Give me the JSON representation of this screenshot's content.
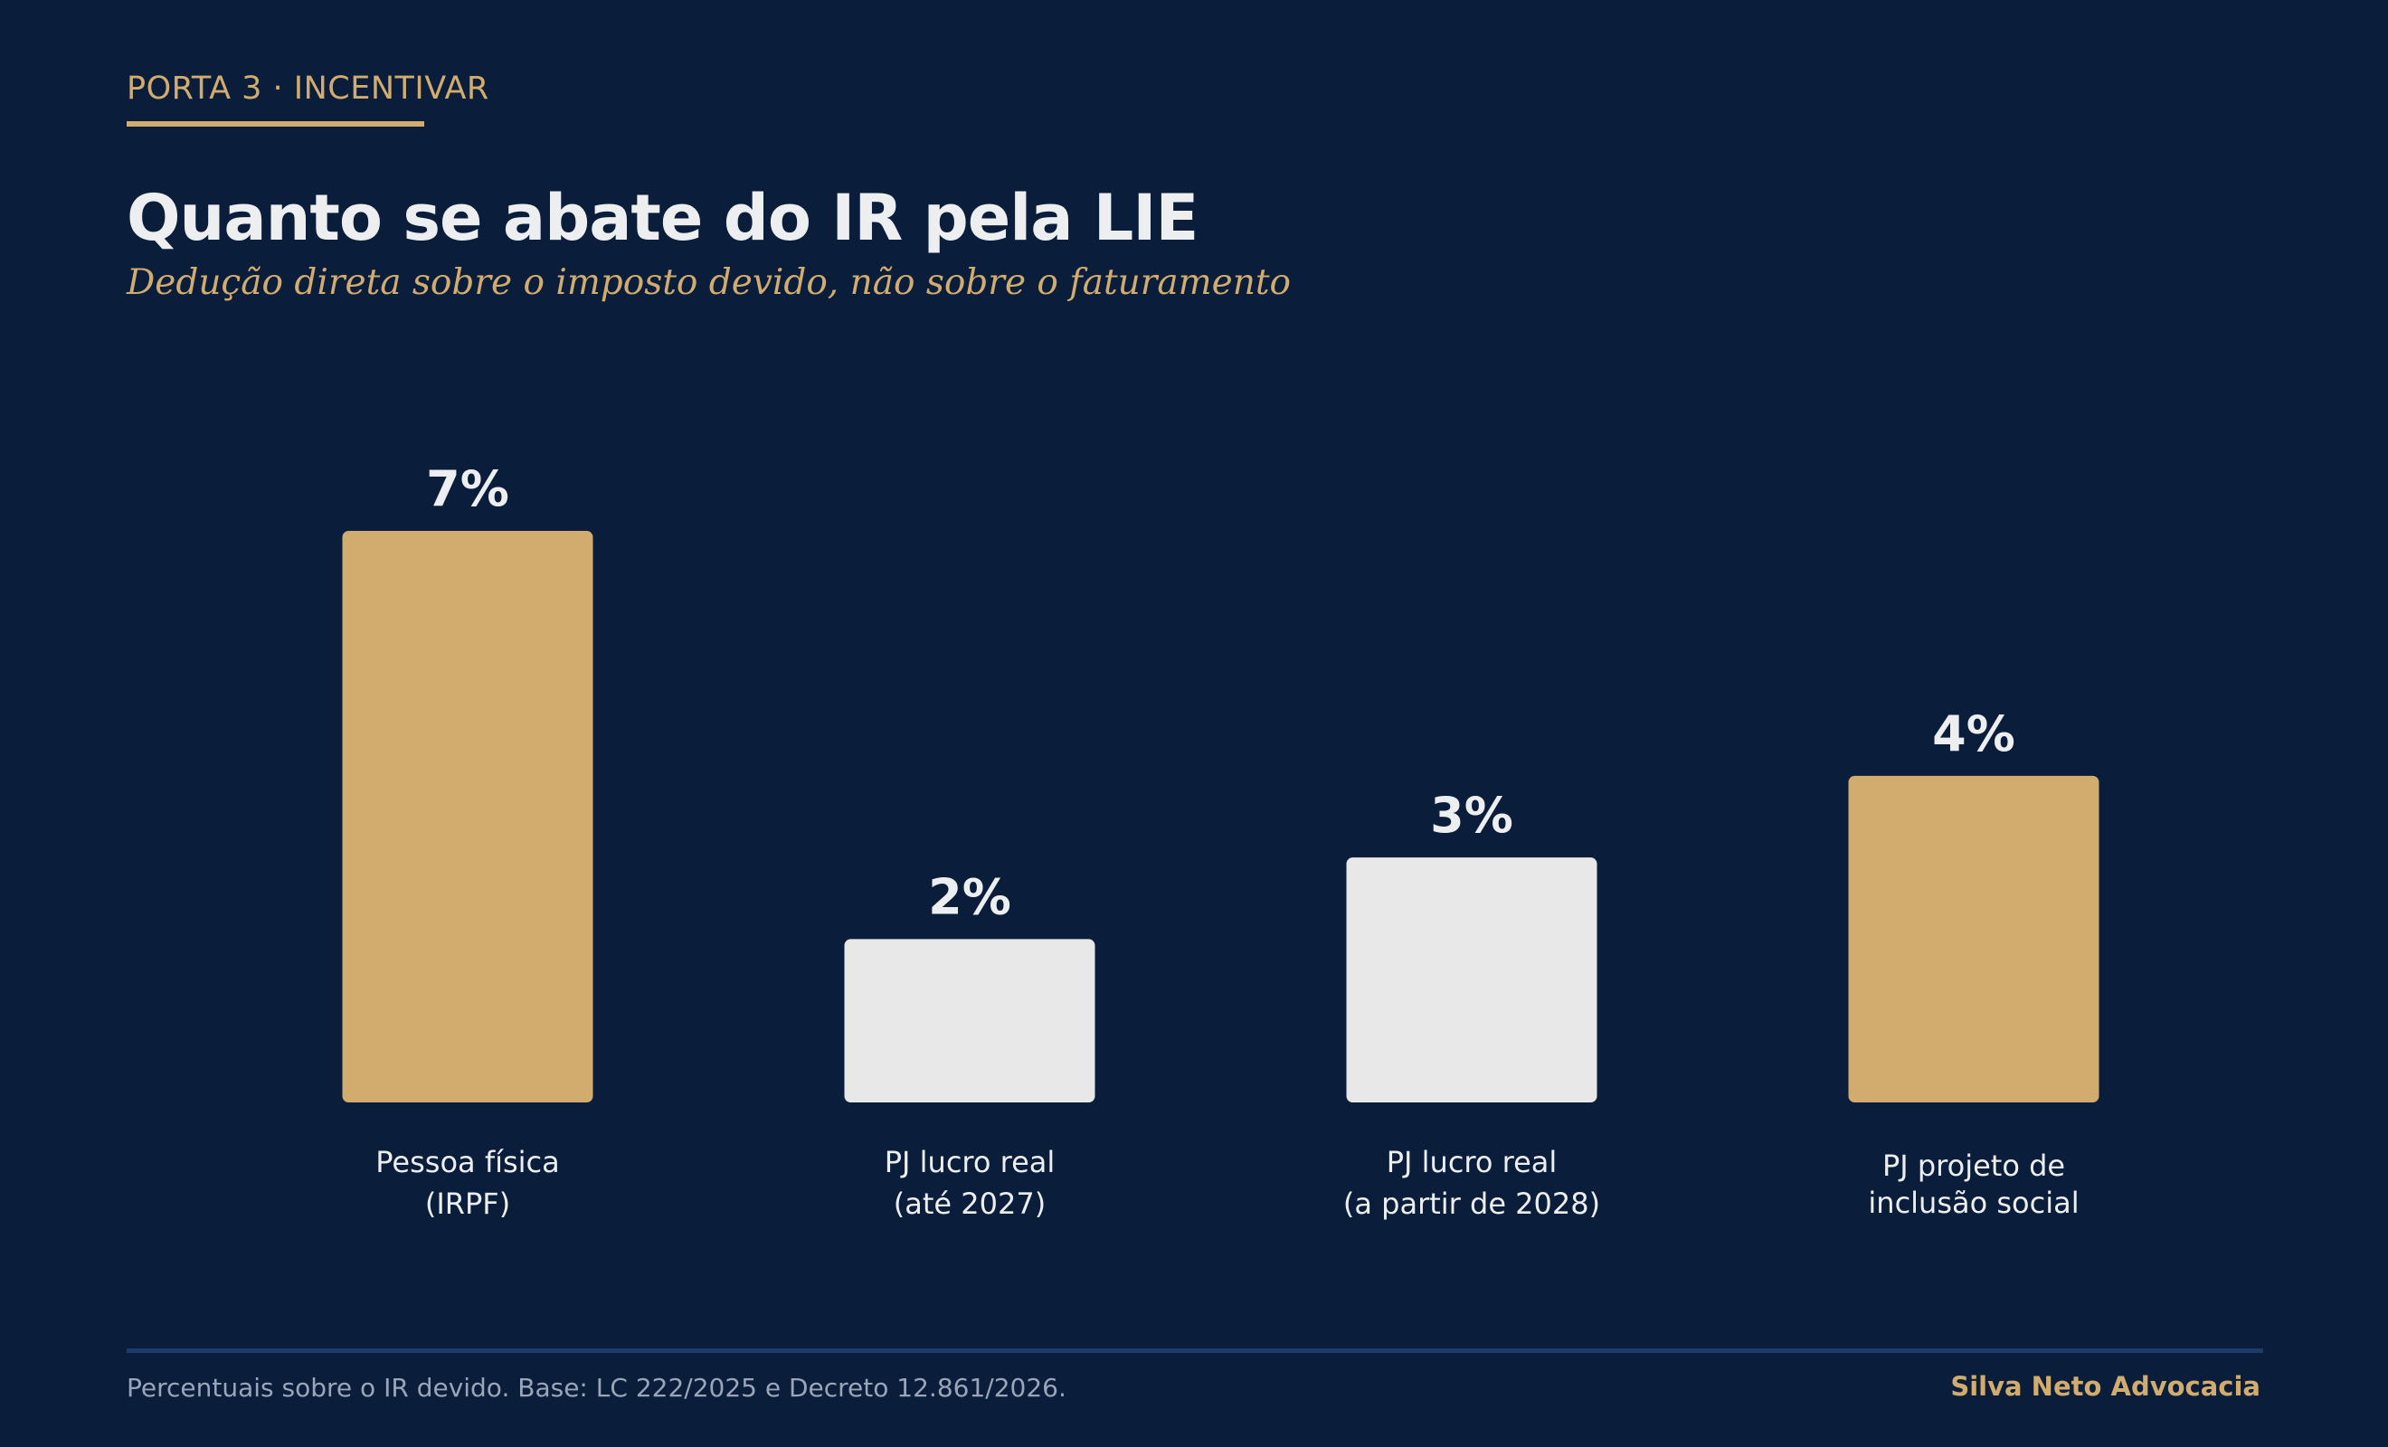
{
  "header": {
    "eyebrow": "PORTA 3 · INCENTIVAR",
    "title": "Quanto se abate do IR pela LIE",
    "subtitle": "Dedução direta sobre o imposto devido, não sobre o faturamento"
  },
  "chart_data": {
    "type": "bar",
    "categories": [
      [
        "Pessoa física",
        "(IRPF)"
      ],
      [
        "PJ lucro real",
        "(até 2027)"
      ],
      [
        "PJ lucro real",
        "(a partir de 2028)"
      ],
      [
        "PJ projeto de",
        "inclusão social"
      ]
    ],
    "values": [
      7,
      2,
      3,
      4
    ],
    "data_labels": [
      "7%",
      "2%",
      "3%",
      "4%"
    ],
    "bar_colors": [
      "#d1ac6e",
      "#e8e8e8",
      "#e8e8e8",
      "#d1ac6e"
    ],
    "ylim": [
      0,
      7
    ],
    "grid": false,
    "legend": "none"
  },
  "footer": {
    "note": "Percentuais sobre o IR devido. Base: LC 222/2025 e Decreto 12.861/2026.",
    "brand": "Silva Neto Advocacia"
  },
  "colors": {
    "background": "#0a1d3a",
    "accent": "#d1ac6e",
    "neutral_bar": "#e8e8e8",
    "text": "#eceef0",
    "muted_text": "#9aa5b8",
    "rule": "#1f3a66"
  }
}
